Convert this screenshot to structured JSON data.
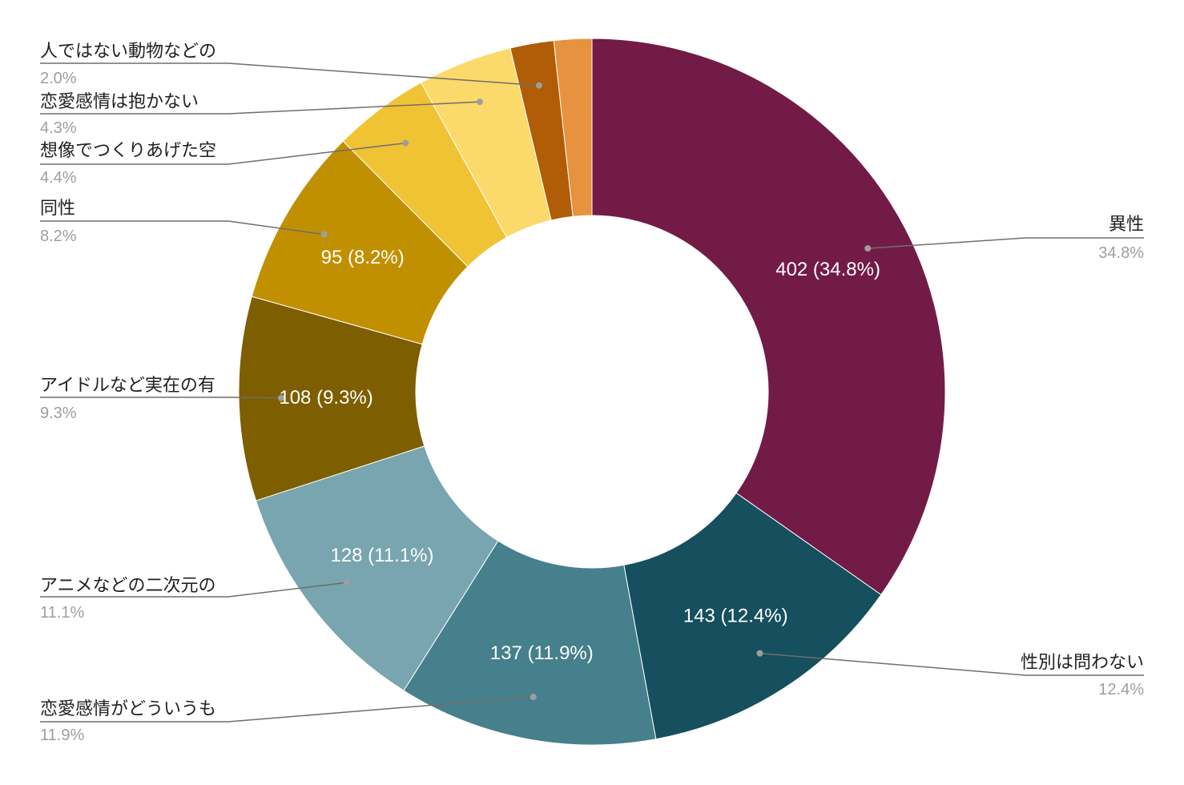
{
  "chart_data": {
    "type": "pie",
    "donut": true,
    "legend_placement": "outside-labels",
    "slices": [
      {
        "label": "異性",
        "value": 402,
        "percent_label": "34.8%",
        "slice_label": "402 (34.8%)",
        "color": "#731b47"
      },
      {
        "label": "性別は問わない",
        "value": 143,
        "percent_label": "12.4%",
        "slice_label": "143 (12.4%)",
        "color": "#164f5e"
      },
      {
        "label": "恋愛感情がどういうも",
        "value": 137,
        "percent_label": "11.9%",
        "slice_label": "137 (11.9%)",
        "color": "#45808c"
      },
      {
        "label": "アニメなどの二次元の",
        "value": 128,
        "percent_label": "11.1%",
        "slice_label": "128 (11.1%)",
        "color": "#78a5af"
      },
      {
        "label": "アイドルなど実在の有",
        "value": 108,
        "percent_label": "9.3%",
        "slice_label": "108 (9.3%)",
        "color": "#7d5e00"
      },
      {
        "label": "同性",
        "value": 95,
        "percent_label": "8.2%",
        "slice_label": "95 (8.2%)",
        "color": "#c19000"
      },
      {
        "label": "想像でつくりあげた空",
        "value": 51,
        "percent_label": "4.4%",
        "slice_label": "",
        "color": "#f0c335"
      },
      {
        "label": "恋愛感情は抱かない",
        "value": 50,
        "percent_label": "4.3%",
        "slice_label": "",
        "color": "#fcd96b"
      },
      {
        "label": "人ではない動物などの",
        "value": 23,
        "percent_label": "2.0%",
        "slice_label": "",
        "color": "#b15c06"
      },
      {
        "label": "",
        "value": 20,
        "percent_label": "",
        "slice_label": "",
        "color": "#e6923e"
      }
    ]
  }
}
